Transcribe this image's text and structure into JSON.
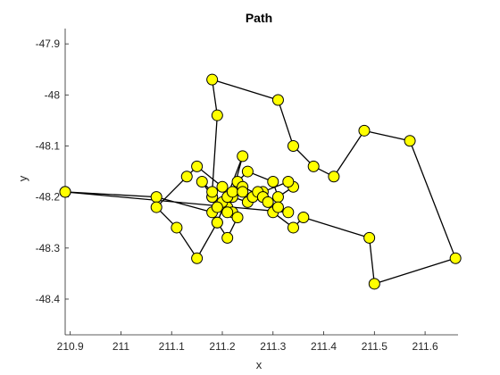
{
  "chart_data": {
    "type": "line",
    "title": "Path",
    "xlabel": "x",
    "ylabel": "y",
    "xlim": [
      210.89,
      211.665
    ],
    "ylim": [
      -48.47,
      -47.87
    ],
    "xticks": [
      210.9,
      211,
      211.1,
      211.2,
      211.3,
      211.4,
      211.5,
      211.6
    ],
    "xtick_labels": [
      "210.9",
      "211",
      "211.1",
      "211.2",
      "211.3",
      "211.4",
      "211.5",
      "211.6"
    ],
    "yticks": [
      -47.9,
      -48,
      -48.1,
      -48.2,
      -48.3,
      -48.4
    ],
    "ytick_labels": [
      "-47.9",
      "-48",
      "-48.1",
      "-48.2",
      "-48.3",
      "-48.4"
    ],
    "grid": false,
    "legend": "none",
    "line_color": "#000000",
    "marker": "circle",
    "marker_face_color": "#ffff00",
    "marker_edge_color": "#000000",
    "series": [
      {
        "x": [
          210.89,
          211.07,
          211.18,
          211.21,
          211.23,
          211.25,
          211.3,
          211.31,
          211.34,
          211.33,
          211.28,
          211.25,
          211.22,
          211.2,
          211.19,
          211.18,
          211.22,
          211.18,
          211.16,
          211.18,
          211.19,
          211.18,
          211.31,
          211.34,
          211.38,
          211.42,
          211.48,
          211.57,
          211.66,
          211.5,
          211.49,
          211.36,
          211.34,
          211.3,
          211.28,
          211.24,
          211.21,
          211.19,
          211.24,
          211.21,
          211.23,
          211.21,
          211.19,
          211.15,
          211.11,
          211.07,
          211.13,
          211.15,
          211.2,
          211.22,
          211.24,
          211.26,
          211.27,
          211.28,
          211.29,
          211.31,
          211.33,
          210.89
        ],
        "y": [
          -48.19,
          -48.2,
          -48.23,
          -48.22,
          -48.17,
          -48.15,
          -48.17,
          -48.2,
          -48.18,
          -48.17,
          -48.19,
          -48.21,
          -48.2,
          -48.21,
          -48.22,
          -48.2,
          -48.23,
          -48.2,
          -48.17,
          -48.19,
          -48.04,
          -47.97,
          -48.01,
          -48.1,
          -48.14,
          -48.16,
          -48.07,
          -48.09,
          -48.32,
          -48.37,
          -48.28,
          -48.24,
          -48.26,
          -48.23,
          -48.2,
          -48.18,
          -48.2,
          -48.25,
          -48.12,
          -48.23,
          -48.24,
          -48.28,
          -48.25,
          -48.32,
          -48.26,
          -48.22,
          -48.16,
          -48.14,
          -48.18,
          -48.19,
          -48.19,
          -48.2,
          -48.19,
          -48.2,
          -48.21,
          -48.22,
          -48.23,
          -48.19
        ]
      }
    ]
  }
}
